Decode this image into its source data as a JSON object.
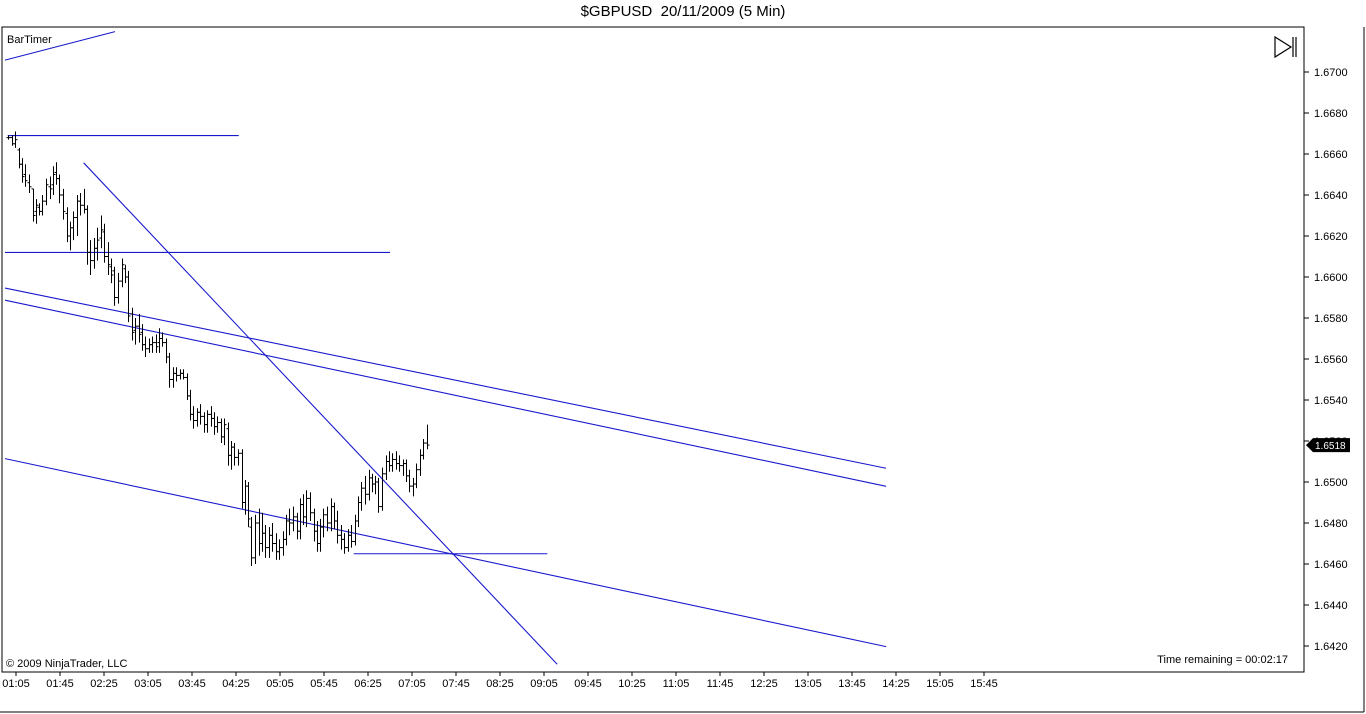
{
  "window": {
    "title": "$GBPUSD  20/11/2009 (5 Min)"
  },
  "indicator": {
    "bar_timer": "BarTimer"
  },
  "footer": {
    "copyright": "© 2009 NinjaTrader, LLC",
    "time_remaining": "Time remaining = 00:02:17"
  },
  "toolbar": {
    "play_icon": "skip-forward-icon"
  },
  "chart_data": {
    "type": "ohlc",
    "title": "$GBPUSD  20/11/2009 (5 Min)",
    "y_ticks": [
      "1.6700",
      "1.6680",
      "1.6660",
      "1.6640",
      "1.6620",
      "1.6600",
      "1.6580",
      "1.6560",
      "1.6540",
      "1.6520",
      "1.6500",
      "1.6480",
      "1.6460",
      "1.6440",
      "1.6420"
    ],
    "x_ticks": [
      "01:05",
      "01:45",
      "02:25",
      "03:05",
      "03:45",
      "04:25",
      "05:05",
      "05:45",
      "06:25",
      "07:05",
      "07:45",
      "08:25",
      "09:05",
      "09:45",
      "10:25",
      "11:05",
      "11:45",
      "12:25",
      "13:05",
      "13:45",
      "14:25",
      "15:05",
      "15:45"
    ],
    "ylim": [
      1.6412,
      1.672
    ],
    "current_price": "1.6518",
    "colors": {
      "bars": "#000000",
      "lines": "#1a1acd",
      "price_box": "#000000"
    },
    "bars": [
      {
        "t": 0.6,
        "o": 1.6668,
        "h": 1.6669,
        "l": 1.6667,
        "c": 1.6668
      },
      {
        "t": 1.2,
        "o": 1.6668,
        "h": 1.6669,
        "l": 1.6664,
        "c": 1.6665
      },
      {
        "t": 1.8,
        "o": 1.6665,
        "h": 1.6671,
        "l": 1.6663,
        "c": 1.6667
      },
      {
        "t": 2.5,
        "o": 1.6662,
        "h": 1.6663,
        "l": 1.6653,
        "c": 1.6655
      },
      {
        "t": 3.1,
        "o": 1.6655,
        "h": 1.6658,
        "l": 1.6646,
        "c": 1.6649
      },
      {
        "t": 3.7,
        "o": 1.665,
        "h": 1.6655,
        "l": 1.6644,
        "c": 1.6647
      },
      {
        "t": 4.3,
        "o": 1.6646,
        "h": 1.665,
        "l": 1.6641,
        "c": 1.6644
      },
      {
        "t": 5.0,
        "o": 1.6643,
        "h": 1.6643,
        "l": 1.6627,
        "c": 1.663
      },
      {
        "t": 5.6,
        "o": 1.6632,
        "h": 1.6638,
        "l": 1.6626,
        "c": 1.6635
      },
      {
        "t": 6.2,
        "o": 1.6634,
        "h": 1.6636,
        "l": 1.663,
        "c": 1.6632
      },
      {
        "t": 6.8,
        "o": 1.6632,
        "h": 1.664,
        "l": 1.663,
        "c": 1.6637
      },
      {
        "t": 7.4,
        "o": 1.6637,
        "h": 1.6648,
        "l": 1.6635,
        "c": 1.6645
      },
      {
        "t": 8.1,
        "o": 1.6644,
        "h": 1.6649,
        "l": 1.6638,
        "c": 1.6643
      },
      {
        "t": 8.7,
        "o": 1.6645,
        "h": 1.6654,
        "l": 1.664,
        "c": 1.665
      },
      {
        "t": 9.3,
        "o": 1.6651,
        "h": 1.6656,
        "l": 1.6645,
        "c": 1.6648
      },
      {
        "t": 9.9,
        "o": 1.6648,
        "h": 1.665,
        "l": 1.6636,
        "c": 1.664
      },
      {
        "t": 10.6,
        "o": 1.664,
        "h": 1.6643,
        "l": 1.6628,
        "c": 1.6632
      },
      {
        "t": 11.2,
        "o": 1.6631,
        "h": 1.6634,
        "l": 1.6617,
        "c": 1.662
      },
      {
        "t": 11.8,
        "o": 1.662,
        "h": 1.6627,
        "l": 1.6613,
        "c": 1.6624
      },
      {
        "t": 12.4,
        "o": 1.6624,
        "h": 1.6632,
        "l": 1.6618,
        "c": 1.6629
      },
      {
        "t": 13.0,
        "o": 1.6629,
        "h": 1.664,
        "l": 1.662,
        "c": 1.6637
      },
      {
        "t": 13.7,
        "o": 1.6637,
        "h": 1.6641,
        "l": 1.663,
        "c": 1.6635
      },
      {
        "t": 14.3,
        "o": 1.6635,
        "h": 1.6643,
        "l": 1.6631,
        "c": 1.6633
      },
      {
        "t": 14.9,
        "o": 1.6633,
        "h": 1.6635,
        "l": 1.6606,
        "c": 1.6612
      },
      {
        "t": 15.5,
        "o": 1.6612,
        "h": 1.6618,
        "l": 1.6601,
        "c": 1.6608
      },
      {
        "t": 16.2,
        "o": 1.6608,
        "h": 1.6619,
        "l": 1.6604,
        "c": 1.6614
      },
      {
        "t": 16.8,
        "o": 1.6614,
        "h": 1.6624,
        "l": 1.6608,
        "c": 1.6618
      },
      {
        "t": 17.4,
        "o": 1.6619,
        "h": 1.663,
        "l": 1.6614,
        "c": 1.6623
      },
      {
        "t": 18.0,
        "o": 1.6622,
        "h": 1.6626,
        "l": 1.6607,
        "c": 1.661
      },
      {
        "t": 18.7,
        "o": 1.661,
        "h": 1.6617,
        "l": 1.6601,
        "c": 1.6606
      },
      {
        "t": 19.3,
        "o": 1.6605,
        "h": 1.6609,
        "l": 1.6597,
        "c": 1.6601
      },
      {
        "t": 19.9,
        "o": 1.6603,
        "h": 1.6605,
        "l": 1.6586,
        "c": 1.659
      },
      {
        "t": 20.5,
        "o": 1.659,
        "h": 1.6602,
        "l": 1.6587,
        "c": 1.6598
      },
      {
        "t": 21.2,
        "o": 1.6598,
        "h": 1.6609,
        "l": 1.6595,
        "c": 1.6606
      },
      {
        "t": 21.8,
        "o": 1.6604,
        "h": 1.6606,
        "l": 1.6597,
        "c": 1.66
      },
      {
        "t": 22.4,
        "o": 1.66,
        "h": 1.6603,
        "l": 1.6578,
        "c": 1.6581
      },
      {
        "t": 23.0,
        "o": 1.6582,
        "h": 1.6585,
        "l": 1.6569,
        "c": 1.6573
      },
      {
        "t": 23.6,
        "o": 1.6574,
        "h": 1.658,
        "l": 1.6567,
        "c": 1.6576
      },
      {
        "t": 24.3,
        "o": 1.6576,
        "h": 1.6582,
        "l": 1.6568,
        "c": 1.6572
      },
      {
        "t": 24.9,
        "o": 1.6573,
        "h": 1.6577,
        "l": 1.6564,
        "c": 1.6567
      },
      {
        "t": 25.5,
        "o": 1.6567,
        "h": 1.6571,
        "l": 1.6561,
        "c": 1.6565
      },
      {
        "t": 26.1,
        "o": 1.6565,
        "h": 1.657,
        "l": 1.6563,
        "c": 1.6567
      },
      {
        "t": 26.8,
        "o": 1.6567,
        "h": 1.6571,
        "l": 1.6563,
        "c": 1.6568
      },
      {
        "t": 27.4,
        "o": 1.6568,
        "h": 1.6572,
        "l": 1.6563,
        "c": 1.6566
      },
      {
        "t": 28.0,
        "o": 1.6568,
        "h": 1.6575,
        "l": 1.6563,
        "c": 1.657
      },
      {
        "t": 28.6,
        "o": 1.657,
        "h": 1.6573,
        "l": 1.6566,
        "c": 1.6568
      },
      {
        "t": 29.3,
        "o": 1.6568,
        "h": 1.657,
        "l": 1.6558,
        "c": 1.6561
      },
      {
        "t": 29.9,
        "o": 1.6561,
        "h": 1.6563,
        "l": 1.6546,
        "c": 1.655
      },
      {
        "t": 30.5,
        "o": 1.655,
        "h": 1.6556,
        "l": 1.6546,
        "c": 1.6553
      },
      {
        "t": 31.1,
        "o": 1.6553,
        "h": 1.6556,
        "l": 1.6549,
        "c": 1.6552
      },
      {
        "t": 31.8,
        "o": 1.6552,
        "h": 1.6555,
        "l": 1.655,
        "c": 1.6553
      },
      {
        "t": 32.4,
        "o": 1.6553,
        "h": 1.6555,
        "l": 1.655,
        "c": 1.6551
      },
      {
        "t": 33.0,
        "o": 1.6551,
        "h": 1.6553,
        "l": 1.654,
        "c": 1.6542
      },
      {
        "t": 33.6,
        "o": 1.6542,
        "h": 1.6545,
        "l": 1.653,
        "c": 1.6533
      },
      {
        "t": 34.2,
        "o": 1.6533,
        "h": 1.6537,
        "l": 1.6526,
        "c": 1.653
      },
      {
        "t": 34.9,
        "o": 1.653,
        "h": 1.6536,
        "l": 1.6527,
        "c": 1.6534
      },
      {
        "t": 35.5,
        "o": 1.6534,
        "h": 1.6538,
        "l": 1.6528,
        "c": 1.6532
      },
      {
        "t": 36.1,
        "o": 1.6532,
        "h": 1.6534,
        "l": 1.6524,
        "c": 1.6528
      },
      {
        "t": 36.7,
        "o": 1.6528,
        "h": 1.6535,
        "l": 1.6524,
        "c": 1.6533
      },
      {
        "t": 37.4,
        "o": 1.6533,
        "h": 1.6537,
        "l": 1.6527,
        "c": 1.6531
      },
      {
        "t": 38.0,
        "o": 1.6531,
        "h": 1.6534,
        "l": 1.6523,
        "c": 1.6527
      },
      {
        "t": 38.6,
        "o": 1.6527,
        "h": 1.6532,
        "l": 1.6524,
        "c": 1.6529
      },
      {
        "t": 39.2,
        "o": 1.6529,
        "h": 1.6531,
        "l": 1.6519,
        "c": 1.6522
      },
      {
        "t": 39.9,
        "o": 1.6522,
        "h": 1.6531,
        "l": 1.6518,
        "c": 1.6528
      },
      {
        "t": 40.5,
        "o": 1.6526,
        "h": 1.6529,
        "l": 1.6508,
        "c": 1.6513
      },
      {
        "t": 41.1,
        "o": 1.6513,
        "h": 1.652,
        "l": 1.6506,
        "c": 1.6517
      },
      {
        "t": 41.7,
        "o": 1.6517,
        "h": 1.6519,
        "l": 1.6508,
        "c": 1.6512
      },
      {
        "t": 42.4,
        "o": 1.6512,
        "h": 1.6516,
        "l": 1.6508,
        "c": 1.6514
      },
      {
        "t": 43.0,
        "o": 1.6514,
        "h": 1.6516,
        "l": 1.6487,
        "c": 1.649
      },
      {
        "t": 43.6,
        "o": 1.649,
        "h": 1.6501,
        "l": 1.6484,
        "c": 1.6498
      },
      {
        "t": 44.2,
        "o": 1.6498,
        "h": 1.65,
        "l": 1.6478,
        "c": 1.6482
      },
      {
        "t": 44.8,
        "o": 1.6478,
        "h": 1.6483,
        "l": 1.6459,
        "c": 1.6463
      },
      {
        "t": 45.5,
        "o": 1.6463,
        "h": 1.6484,
        "l": 1.646,
        "c": 1.648
      },
      {
        "t": 46.1,
        "o": 1.648,
        "h": 1.6487,
        "l": 1.6464,
        "c": 1.647
      },
      {
        "t": 46.7,
        "o": 1.647,
        "h": 1.6485,
        "l": 1.6466,
        "c": 1.6475
      },
      {
        "t": 47.3,
        "o": 1.6475,
        "h": 1.6479,
        "l": 1.6463,
        "c": 1.6468
      },
      {
        "t": 48.0,
        "o": 1.6468,
        "h": 1.6478,
        "l": 1.6463,
        "c": 1.6474
      },
      {
        "t": 48.6,
        "o": 1.6474,
        "h": 1.648,
        "l": 1.6466,
        "c": 1.647
      },
      {
        "t": 49.2,
        "o": 1.647,
        "h": 1.6475,
        "l": 1.6462,
        "c": 1.6466
      },
      {
        "t": 49.8,
        "o": 1.6466,
        "h": 1.6472,
        "l": 1.6462,
        "c": 1.6468
      },
      {
        "t": 50.5,
        "o": 1.6468,
        "h": 1.6476,
        "l": 1.6464,
        "c": 1.6472
      },
      {
        "t": 51.1,
        "o": 1.6472,
        "h": 1.6484,
        "l": 1.6469,
        "c": 1.6481
      },
      {
        "t": 51.7,
        "o": 1.6481,
        "h": 1.6487,
        "l": 1.6474,
        "c": 1.648
      },
      {
        "t": 52.3,
        "o": 1.648,
        "h": 1.6488,
        "l": 1.6476,
        "c": 1.6483
      },
      {
        "t": 53.0,
        "o": 1.6483,
        "h": 1.6485,
        "l": 1.6472,
        "c": 1.6476
      },
      {
        "t": 53.6,
        "o": 1.6476,
        "h": 1.6492,
        "l": 1.6472,
        "c": 1.6489
      },
      {
        "t": 54.2,
        "o": 1.6489,
        "h": 1.6494,
        "l": 1.6479,
        "c": 1.6483
      },
      {
        "t": 54.8,
        "o": 1.6483,
        "h": 1.6496,
        "l": 1.6478,
        "c": 1.6492
      },
      {
        "t": 55.4,
        "o": 1.6492,
        "h": 1.6495,
        "l": 1.6481,
        "c": 1.6485
      },
      {
        "t": 56.1,
        "o": 1.6485,
        "h": 1.6487,
        "l": 1.6471,
        "c": 1.6476
      },
      {
        "t": 56.7,
        "o": 1.6476,
        "h": 1.6481,
        "l": 1.6466,
        "c": 1.647
      },
      {
        "t": 57.3,
        "o": 1.647,
        "h": 1.6482,
        "l": 1.6466,
        "c": 1.6478
      },
      {
        "t": 57.9,
        "o": 1.6478,
        "h": 1.6487,
        "l": 1.6473,
        "c": 1.6484
      },
      {
        "t": 58.6,
        "o": 1.6484,
        "h": 1.6488,
        "l": 1.6476,
        "c": 1.648
      },
      {
        "t": 59.2,
        "o": 1.648,
        "h": 1.6492,
        "l": 1.6476,
        "c": 1.6488
      },
      {
        "t": 59.8,
        "o": 1.6488,
        "h": 1.649,
        "l": 1.6477,
        "c": 1.6481
      },
      {
        "t": 60.4,
        "o": 1.6481,
        "h": 1.6486,
        "l": 1.647,
        "c": 1.6474
      },
      {
        "t": 61.1,
        "o": 1.6474,
        "h": 1.6479,
        "l": 1.6467,
        "c": 1.6472
      },
      {
        "t": 61.7,
        "o": 1.6472,
        "h": 1.6475,
        "l": 1.6465,
        "c": 1.6468
      },
      {
        "t": 62.3,
        "o": 1.6468,
        "h": 1.6477,
        "l": 1.6466,
        "c": 1.6474
      },
      {
        "t": 62.9,
        "o": 1.6474,
        "h": 1.6479,
        "l": 1.6468,
        "c": 1.6471
      },
      {
        "t": 63.6,
        "o": 1.6471,
        "h": 1.6484,
        "l": 1.6469,
        "c": 1.6481
      },
      {
        "t": 64.2,
        "o": 1.6481,
        "h": 1.6493,
        "l": 1.6478,
        "c": 1.649
      },
      {
        "t": 64.8,
        "o": 1.649,
        "h": 1.65,
        "l": 1.6486,
        "c": 1.6497
      },
      {
        "t": 65.4,
        "o": 1.6497,
        "h": 1.6503,
        "l": 1.6489,
        "c": 1.6494
      },
      {
        "t": 66.1,
        "o": 1.6494,
        "h": 1.6506,
        "l": 1.6491,
        "c": 1.6502
      },
      {
        "t": 66.7,
        "o": 1.6502,
        "h": 1.6504,
        "l": 1.6495,
        "c": 1.6499
      },
      {
        "t": 67.3,
        "o": 1.6499,
        "h": 1.6503,
        "l": 1.6494,
        "c": 1.65
      },
      {
        "t": 67.9,
        "o": 1.65,
        "h": 1.6502,
        "l": 1.6485,
        "c": 1.6488
      },
      {
        "t": 68.5,
        "o": 1.6488,
        "h": 1.6507,
        "l": 1.6486,
        "c": 1.6504
      },
      {
        "t": 69.2,
        "o": 1.6504,
        "h": 1.6513,
        "l": 1.6501,
        "c": 1.651
      },
      {
        "t": 69.8,
        "o": 1.651,
        "h": 1.6515,
        "l": 1.6505,
        "c": 1.6508
      },
      {
        "t": 70.4,
        "o": 1.6508,
        "h": 1.6514,
        "l": 1.6505,
        "c": 1.6511
      },
      {
        "t": 71.0,
        "o": 1.6511,
        "h": 1.6515,
        "l": 1.6506,
        "c": 1.6509
      },
      {
        "t": 71.7,
        "o": 1.6509,
        "h": 1.6513,
        "l": 1.6505,
        "c": 1.6508
      },
      {
        "t": 72.3,
        "o": 1.6508,
        "h": 1.6511,
        "l": 1.6503,
        "c": 1.6509
      },
      {
        "t": 72.9,
        "o": 1.6509,
        "h": 1.6511,
        "l": 1.65,
        "c": 1.6503
      },
      {
        "t": 73.5,
        "o": 1.6503,
        "h": 1.6506,
        "l": 1.6495,
        "c": 1.6498
      },
      {
        "t": 74.2,
        "o": 1.6498,
        "h": 1.6502,
        "l": 1.6493,
        "c": 1.6499
      },
      {
        "t": 74.8,
        "o": 1.6499,
        "h": 1.6509,
        "l": 1.6497,
        "c": 1.6506
      },
      {
        "t": 75.4,
        "o": 1.6506,
        "h": 1.6516,
        "l": 1.6503,
        "c": 1.6513
      },
      {
        "t": 76.0,
        "o": 1.6513,
        "h": 1.6521,
        "l": 1.6511,
        "c": 1.6519
      },
      {
        "t": 76.7,
        "o": 1.6519,
        "h": 1.6528,
        "l": 1.6516,
        "c": 1.6518
      }
    ],
    "lines": [
      {
        "name": "upper-left-trendline",
        "t1": 0.0,
        "p1": 1.67058,
        "t2": 20.0,
        "p2": 1.67197
      },
      {
        "name": "resistance-1.6669",
        "t1": 0.5,
        "p1": 1.6669,
        "t2": 42.5,
        "p2": 1.6669
      },
      {
        "name": "resistance-1.6612",
        "t1": 0.0,
        "p1": 1.6612,
        "t2": 70.0,
        "p2": 1.6612
      },
      {
        "name": "steep-downtrend",
        "t1": 14.3,
        "p1": 1.66557,
        "t2": 100.4,
        "p2": 1.64111
      },
      {
        "name": "channel-upper",
        "t1": 0.0,
        "p1": 1.65946,
        "t2": 160.2,
        "p2": 1.65067
      },
      {
        "name": "channel-middle",
        "t1": 0.0,
        "p1": 1.65887,
        "t2": 160.2,
        "p2": 1.64979
      },
      {
        "name": "channel-lower",
        "t1": 0.0,
        "p1": 1.65114,
        "t2": 160.2,
        "p2": 1.64197
      },
      {
        "name": "support-1.6465",
        "t1": 63.4,
        "p1": 1.6465,
        "t2": 98.6,
        "p2": 1.6465
      }
    ]
  }
}
